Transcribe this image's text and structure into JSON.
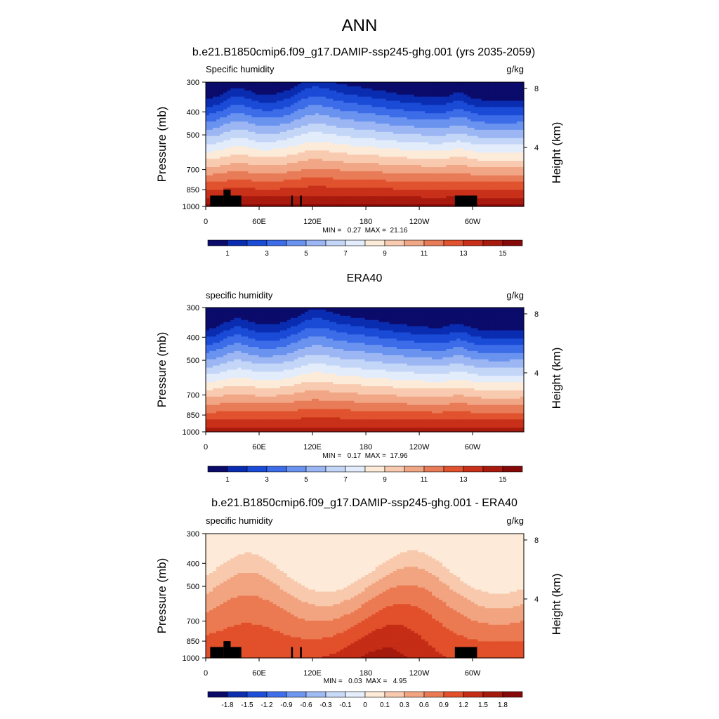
{
  "figure": {
    "title": "ANN",
    "y_left_label": "Pressure (mb)",
    "y_right_label": "Height (km)",
    "y_ticks": [
      "300",
      "400",
      "500",
      "700",
      "850",
      "1000"
    ],
    "y_tick_values": [
      300,
      400,
      500,
      700,
      850,
      1000
    ],
    "height_ticks": [
      "8",
      "4"
    ],
    "height_tick_values": [
      8,
      4
    ],
    "x_ticks": [
      "0",
      "60E",
      "120E",
      "180",
      "120W",
      "60W"
    ],
    "x_tick_values": [
      0,
      60,
      120,
      180,
      240,
      300
    ],
    "x_range": [
      0,
      357.5
    ],
    "colors_main": [
      "#0b0b6b",
      "#0a2cb0",
      "#1a4bd6",
      "#3c6ce8",
      "#6a93ef",
      "#9cb6f3",
      "#c4d6f7",
      "#e3ecfb",
      "#fdebd9",
      "#f8cab0",
      "#f1a786",
      "#e97c58",
      "#e0532e",
      "#c8301a",
      "#a91a0e",
      "#860808"
    ],
    "colors_diff": [
      "#0a0a68",
      "#0c2fb0",
      "#1d4fd8",
      "#3f70ea",
      "#7097f0",
      "#9fbaf4",
      "#c9d9f8",
      "#e6eefc",
      "#fdead8",
      "#f8c9ad",
      "#f2a480",
      "#eb7a52",
      "#e2502b",
      "#c52d16",
      "#a41a0c",
      "#860808"
    ]
  },
  "chart_data": [
    {
      "type": "heatmap",
      "title": "b.e21.B1850cmip6.f09_g17.DAMIP-ssp245-ghg.001 (yrs 2035-2059)",
      "left_label": "Specific humidity",
      "right_label": "g/kg",
      "stats": "MIN =   0.27  MAX =  21.16",
      "min": 0.27,
      "max": 21.16,
      "colorbar_labels": [
        "1",
        "3",
        "5",
        "7",
        "9",
        "11",
        "13",
        "15"
      ],
      "colorbar_levels": [
        1,
        3,
        5,
        7,
        9,
        11,
        13,
        15
      ],
      "masked_terrain": true
    },
    {
      "type": "heatmap",
      "title": "ERA40",
      "left_label": "specific humidity",
      "right_label": "g/kg",
      "stats": "MIN =   0.17  MAX =  17.96",
      "min": 0.17,
      "max": 17.96,
      "colorbar_labels": [
        "1",
        "3",
        "5",
        "7",
        "9",
        "11",
        "13",
        "15"
      ],
      "colorbar_levels": [
        1,
        3,
        5,
        7,
        9,
        11,
        13,
        15
      ],
      "masked_terrain": false
    },
    {
      "type": "heatmap",
      "title": "b.e21.B1850cmip6.f09_g17.DAMIP-ssp245-ghg.001 - ERA40",
      "left_label": "specific humidity",
      "right_label": "g/kg",
      "stats": "MIN =   0.03  MAX =   4.95",
      "min": 0.03,
      "max": 4.95,
      "colorbar_labels": [
        "-1.8",
        "-1.5",
        "-1.2",
        "-0.9",
        "-0.6",
        "-0.3",
        "-0.1",
        "0",
        "0.1",
        "0.3",
        "0.6",
        "0.9",
        "1.2",
        "1.5",
        "1.8"
      ],
      "colorbar_levels": [
        -1.8,
        -1.5,
        -1.2,
        -0.9,
        -0.6,
        -0.3,
        -0.1,
        0,
        0.1,
        0.3,
        0.6,
        0.9,
        1.2,
        1.5,
        1.8
      ],
      "masked_terrain": true
    }
  ]
}
